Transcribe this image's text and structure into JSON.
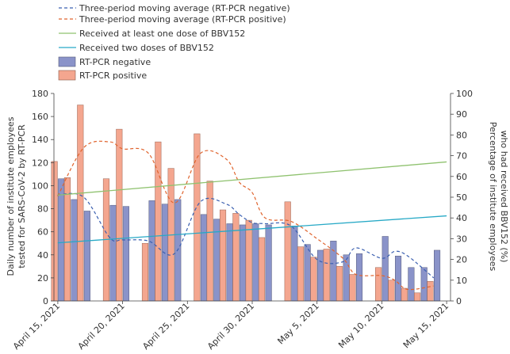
{
  "chart_data": {
    "type": "bar",
    "title": "",
    "ylabel": "Daily number of institute employees tested for SARS-CoV-2 by RT-PCR",
    "ylabel_lines": [
      "Daily number of institute employees",
      "tested for SARS-CoV-2 by RT-PCR"
    ],
    "ylabel_right": "Percentage of institute employees who had received BBV152 (%)",
    "ylabel_right_lines": [
      "Percentage of institute employees",
      "who had received BBV152 (%)"
    ],
    "ylim": [
      0,
      180
    ],
    "ylim_right": [
      0,
      100
    ],
    "y_ticks": [
      0,
      20,
      40,
      60,
      80,
      100,
      120,
      140,
      160,
      180
    ],
    "y_right_ticks": [
      0,
      10,
      20,
      30,
      40,
      50,
      60,
      70,
      80,
      90,
      100
    ],
    "grid": false,
    "legend_position": "top-left",
    "x_tick_labels": [
      "April 15, 2021",
      "April 20, 2021",
      "April 25, 2021",
      "April 30, 2021",
      "May 5, 2021",
      "May 10, 2021",
      "May 15, 2021"
    ],
    "categories": [
      "2021-04-15",
      "2021-04-16",
      "2021-04-17",
      "2021-04-19",
      "2021-04-20",
      "2021-04-22",
      "2021-04-23",
      "2021-04-24",
      "2021-04-26",
      "2021-04-27",
      "2021-04-28",
      "2021-04-29",
      "2021-04-30",
      "2021-05-01",
      "2021-05-03",
      "2021-05-04",
      "2021-05-05",
      "2021-05-06",
      "2021-05-07",
      "2021-05-08",
      "2021-05-10",
      "2021-05-11",
      "2021-05-12",
      "2021-05-13",
      "2021-05-14"
    ],
    "series": [
      {
        "name": "RT-PCR negative",
        "values": [
          106,
          88,
          78,
          83,
          82,
          87,
          84,
          88,
          75,
          71,
          67,
          66,
          67,
          66,
          65,
          49,
          44,
          52,
          40,
          41,
          56,
          39,
          29,
          29,
          44
        ],
        "color": "#8a93c9"
      },
      {
        "name": "RT-PCR positive",
        "values": [
          121,
          107,
          170,
          106,
          149,
          50,
          138,
          115,
          145,
          104,
          79,
          76,
          70,
          55,
          86,
          47,
          38,
          45,
          30,
          23,
          29,
          18,
          11,
          7,
          17
        ],
        "color": "#f4a68f"
      }
    ],
    "moving_average_negative": {
      "name": "Three-period moving average (RT-PCR negative)",
      "x": [
        "2021-04-15",
        "2021-04-17",
        "2021-04-19",
        "2021-04-20",
        "2021-04-22",
        "2021-04-24",
        "2021-04-26",
        "2021-04-28",
        "2021-04-29",
        "2021-04-30",
        "2021-05-01",
        "2021-05-03",
        "2021-05-05",
        "2021-05-07",
        "2021-05-08",
        "2021-05-10",
        "2021-05-11",
        "2021-05-12",
        "2021-05-14"
      ],
      "values": [
        92,
        90,
        55,
        53,
        52,
        41,
        86,
        84,
        75,
        68,
        67,
        65,
        36,
        34,
        46,
        37,
        43,
        39,
        20
      ],
      "color": "#3a5fb0"
    },
    "moving_average_positive": {
      "name": "Three-period moving average (RT-PCR positive)",
      "x": [
        "2021-04-15",
        "2021-04-17",
        "2021-04-19",
        "2021-04-20",
        "2021-04-22",
        "2021-04-24",
        "2021-04-26",
        "2021-04-28",
        "2021-04-29",
        "2021-04-30",
        "2021-05-01",
        "2021-05-03",
        "2021-05-05",
        "2021-05-07",
        "2021-05-08",
        "2021-05-10",
        "2021-05-11",
        "2021-05-12",
        "2021-05-14"
      ],
      "values": [
        91,
        133,
        138,
        132,
        128,
        85,
        128,
        123,
        103,
        94,
        72,
        69,
        54,
        37,
        23,
        22,
        18,
        10,
        13
      ],
      "color": "#e0642e"
    },
    "vaccination_one_dose": {
      "name": "Received at least one dose of BBV152",
      "x": [
        "2021-04-15",
        "2021-05-15"
      ],
      "values_percent": [
        51,
        67
      ],
      "color": "#8fc26f"
    },
    "vaccination_two_doses": {
      "name": "Received two doses of BBV152",
      "x": [
        "2021-04-15",
        "2021-05-15"
      ],
      "values_percent": [
        28,
        41
      ],
      "color": "#27a9c6"
    }
  }
}
